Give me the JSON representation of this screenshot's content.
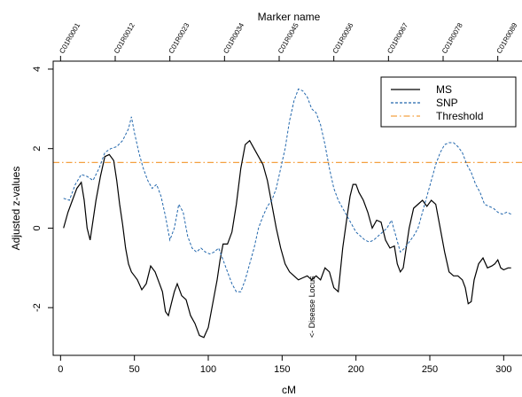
{
  "chart_data": {
    "type": "line",
    "title": "",
    "top_axis_label": "Marker name",
    "xlabel": "cM",
    "ylabel": "Adjusted z-values",
    "xlim": [
      -5,
      313
    ],
    "ylim": [
      -3.2,
      4.2
    ],
    "x_ticks": [
      "0",
      "50",
      "100",
      "150",
      "200",
      "250",
      "300"
    ],
    "y_ticks": [
      "-2",
      "0",
      "2",
      "4"
    ],
    "markers": [
      {
        "label": "C01R0001",
        "cm": 0
      },
      {
        "label": "C01R0012",
        "cm": 37
      },
      {
        "label": "C01R0023",
        "cm": 74
      },
      {
        "label": "C01R0034",
        "cm": 111
      },
      {
        "label": "C01R0045",
        "cm": 148
      },
      {
        "label": "C01R0056",
        "cm": 185
      },
      {
        "label": "C01R0067",
        "cm": 222
      },
      {
        "label": "C01R0078",
        "cm": 259
      },
      {
        "label": "C01R0089",
        "cm": 296
      }
    ],
    "threshold": 1.65,
    "annotation": {
      "text": "<- Disease Locus",
      "cm": 172,
      "y": -2.2
    },
    "legend": {
      "position": "top-right",
      "entries": [
        "MS",
        "SNP",
        "Threshold"
      ]
    },
    "series": [
      {
        "name": "MS",
        "color": "#000000",
        "style": "solid",
        "x": [
          2,
          5,
          8,
          11,
          14,
          16,
          18,
          20,
          22,
          24,
          27,
          30,
          33,
          36,
          38,
          40,
          42,
          44,
          46,
          48,
          50,
          52,
          55,
          58,
          61,
          64,
          67,
          69,
          71,
          73,
          75,
          77,
          79,
          82,
          85,
          88,
          91,
          94,
          97,
          100,
          103,
          106,
          108,
          110,
          113,
          116,
          119,
          122,
          125,
          128,
          131,
          134,
          137,
          140,
          143,
          146,
          149,
          152,
          155,
          158,
          161,
          164,
          167,
          170,
          173,
          176,
          179,
          182,
          185,
          188,
          191,
          194,
          196,
          198,
          200,
          202,
          205,
          208,
          211,
          214,
          217,
          220,
          223,
          226,
          228,
          230,
          232,
          234,
          236,
          239,
          242,
          245,
          248,
          251,
          254,
          257,
          260,
          263,
          266,
          269,
          272,
          274,
          276,
          278,
          280,
          283,
          286,
          289,
          292,
          294,
          296,
          298,
          300,
          303,
          305
        ],
        "y": [
          0.0,
          0.4,
          0.7,
          1.0,
          1.15,
          0.7,
          0.0,
          -0.3,
          0.2,
          0.7,
          1.3,
          1.8,
          1.85,
          1.7,
          1.2,
          0.6,
          0.1,
          -0.5,
          -0.9,
          -1.1,
          -1.2,
          -1.3,
          -1.55,
          -1.4,
          -0.95,
          -1.1,
          -1.4,
          -1.6,
          -2.1,
          -2.2,
          -1.9,
          -1.6,
          -1.4,
          -1.7,
          -1.8,
          -2.2,
          -2.4,
          -2.7,
          -2.75,
          -2.5,
          -1.9,
          -1.3,
          -0.8,
          -0.4,
          -0.4,
          -0.1,
          0.6,
          1.5,
          2.1,
          2.2,
          2.0,
          1.8,
          1.6,
          1.2,
          0.6,
          0.0,
          -0.5,
          -0.9,
          -1.1,
          -1.2,
          -1.3,
          -1.25,
          -1.2,
          -1.3,
          -1.2,
          -1.3,
          -1.0,
          -1.1,
          -1.5,
          -1.6,
          -0.5,
          0.3,
          0.8,
          1.1,
          1.1,
          0.9,
          0.7,
          0.4,
          0.0,
          0.2,
          0.15,
          -0.3,
          -0.5,
          -0.45,
          -0.9,
          -1.1,
          -1.0,
          -0.5,
          0.0,
          0.5,
          0.6,
          0.7,
          0.55,
          0.7,
          0.6,
          0.0,
          -0.6,
          -1.1,
          -1.2,
          -1.2,
          -1.3,
          -1.5,
          -1.9,
          -1.85,
          -1.3,
          -0.9,
          -0.75,
          -1.0,
          -0.95,
          -0.9,
          -0.8,
          -1.0,
          -1.05,
          -1.0,
          -1.0
        ]
      },
      {
        "name": "SNP",
        "color": "#2166ac",
        "style": "dashed",
        "x": [
          2,
          6,
          10,
          14,
          18,
          22,
          26,
          30,
          34,
          38,
          42,
          46,
          48,
          50,
          53,
          56,
          59,
          62,
          65,
          68,
          71,
          74,
          77,
          80,
          83,
          86,
          89,
          92,
          95,
          98,
          101,
          104,
          107,
          110,
          113,
          116,
          119,
          122,
          125,
          128,
          131,
          134,
          137,
          140,
          143,
          146,
          149,
          152,
          155,
          158,
          161,
          164,
          167,
          170,
          173,
          176,
          179,
          182,
          185,
          188,
          191,
          194,
          197,
          200,
          203,
          206,
          209,
          212,
          215,
          218,
          221,
          224,
          227,
          230,
          233,
          236,
          239,
          242,
          245,
          248,
          251,
          254,
          257,
          260,
          263,
          266,
          269,
          272,
          275,
          278,
          281,
          284,
          287,
          290,
          293,
          296,
          299,
          302,
          305
        ],
        "y": [
          0.75,
          0.7,
          1.1,
          1.35,
          1.3,
          1.2,
          1.5,
          1.9,
          2.0,
          2.05,
          2.2,
          2.5,
          2.8,
          2.4,
          1.9,
          1.5,
          1.2,
          1.0,
          1.1,
          0.8,
          0.3,
          -0.3,
          0.0,
          0.6,
          0.4,
          -0.2,
          -0.5,
          -0.6,
          -0.5,
          -0.6,
          -0.65,
          -0.6,
          -0.5,
          -0.8,
          -1.1,
          -1.4,
          -1.6,
          -1.6,
          -1.3,
          -0.9,
          -0.5,
          0.0,
          0.3,
          0.55,
          0.7,
          1.0,
          1.5,
          2.0,
          2.7,
          3.2,
          3.5,
          3.45,
          3.3,
          3.0,
          2.9,
          2.6,
          2.1,
          1.5,
          1.0,
          0.7,
          0.5,
          0.3,
          0.1,
          -0.1,
          -0.2,
          -0.3,
          -0.35,
          -0.3,
          -0.2,
          -0.1,
          0.0,
          0.2,
          -0.2,
          -0.6,
          -0.5,
          -0.35,
          -0.2,
          0.0,
          0.4,
          0.8,
          1.2,
          1.6,
          1.9,
          2.1,
          2.15,
          2.15,
          2.05,
          1.9,
          1.6,
          1.4,
          1.1,
          0.9,
          0.6,
          0.55,
          0.5,
          0.4,
          0.35,
          0.4,
          0.35
        ]
      }
    ]
  }
}
